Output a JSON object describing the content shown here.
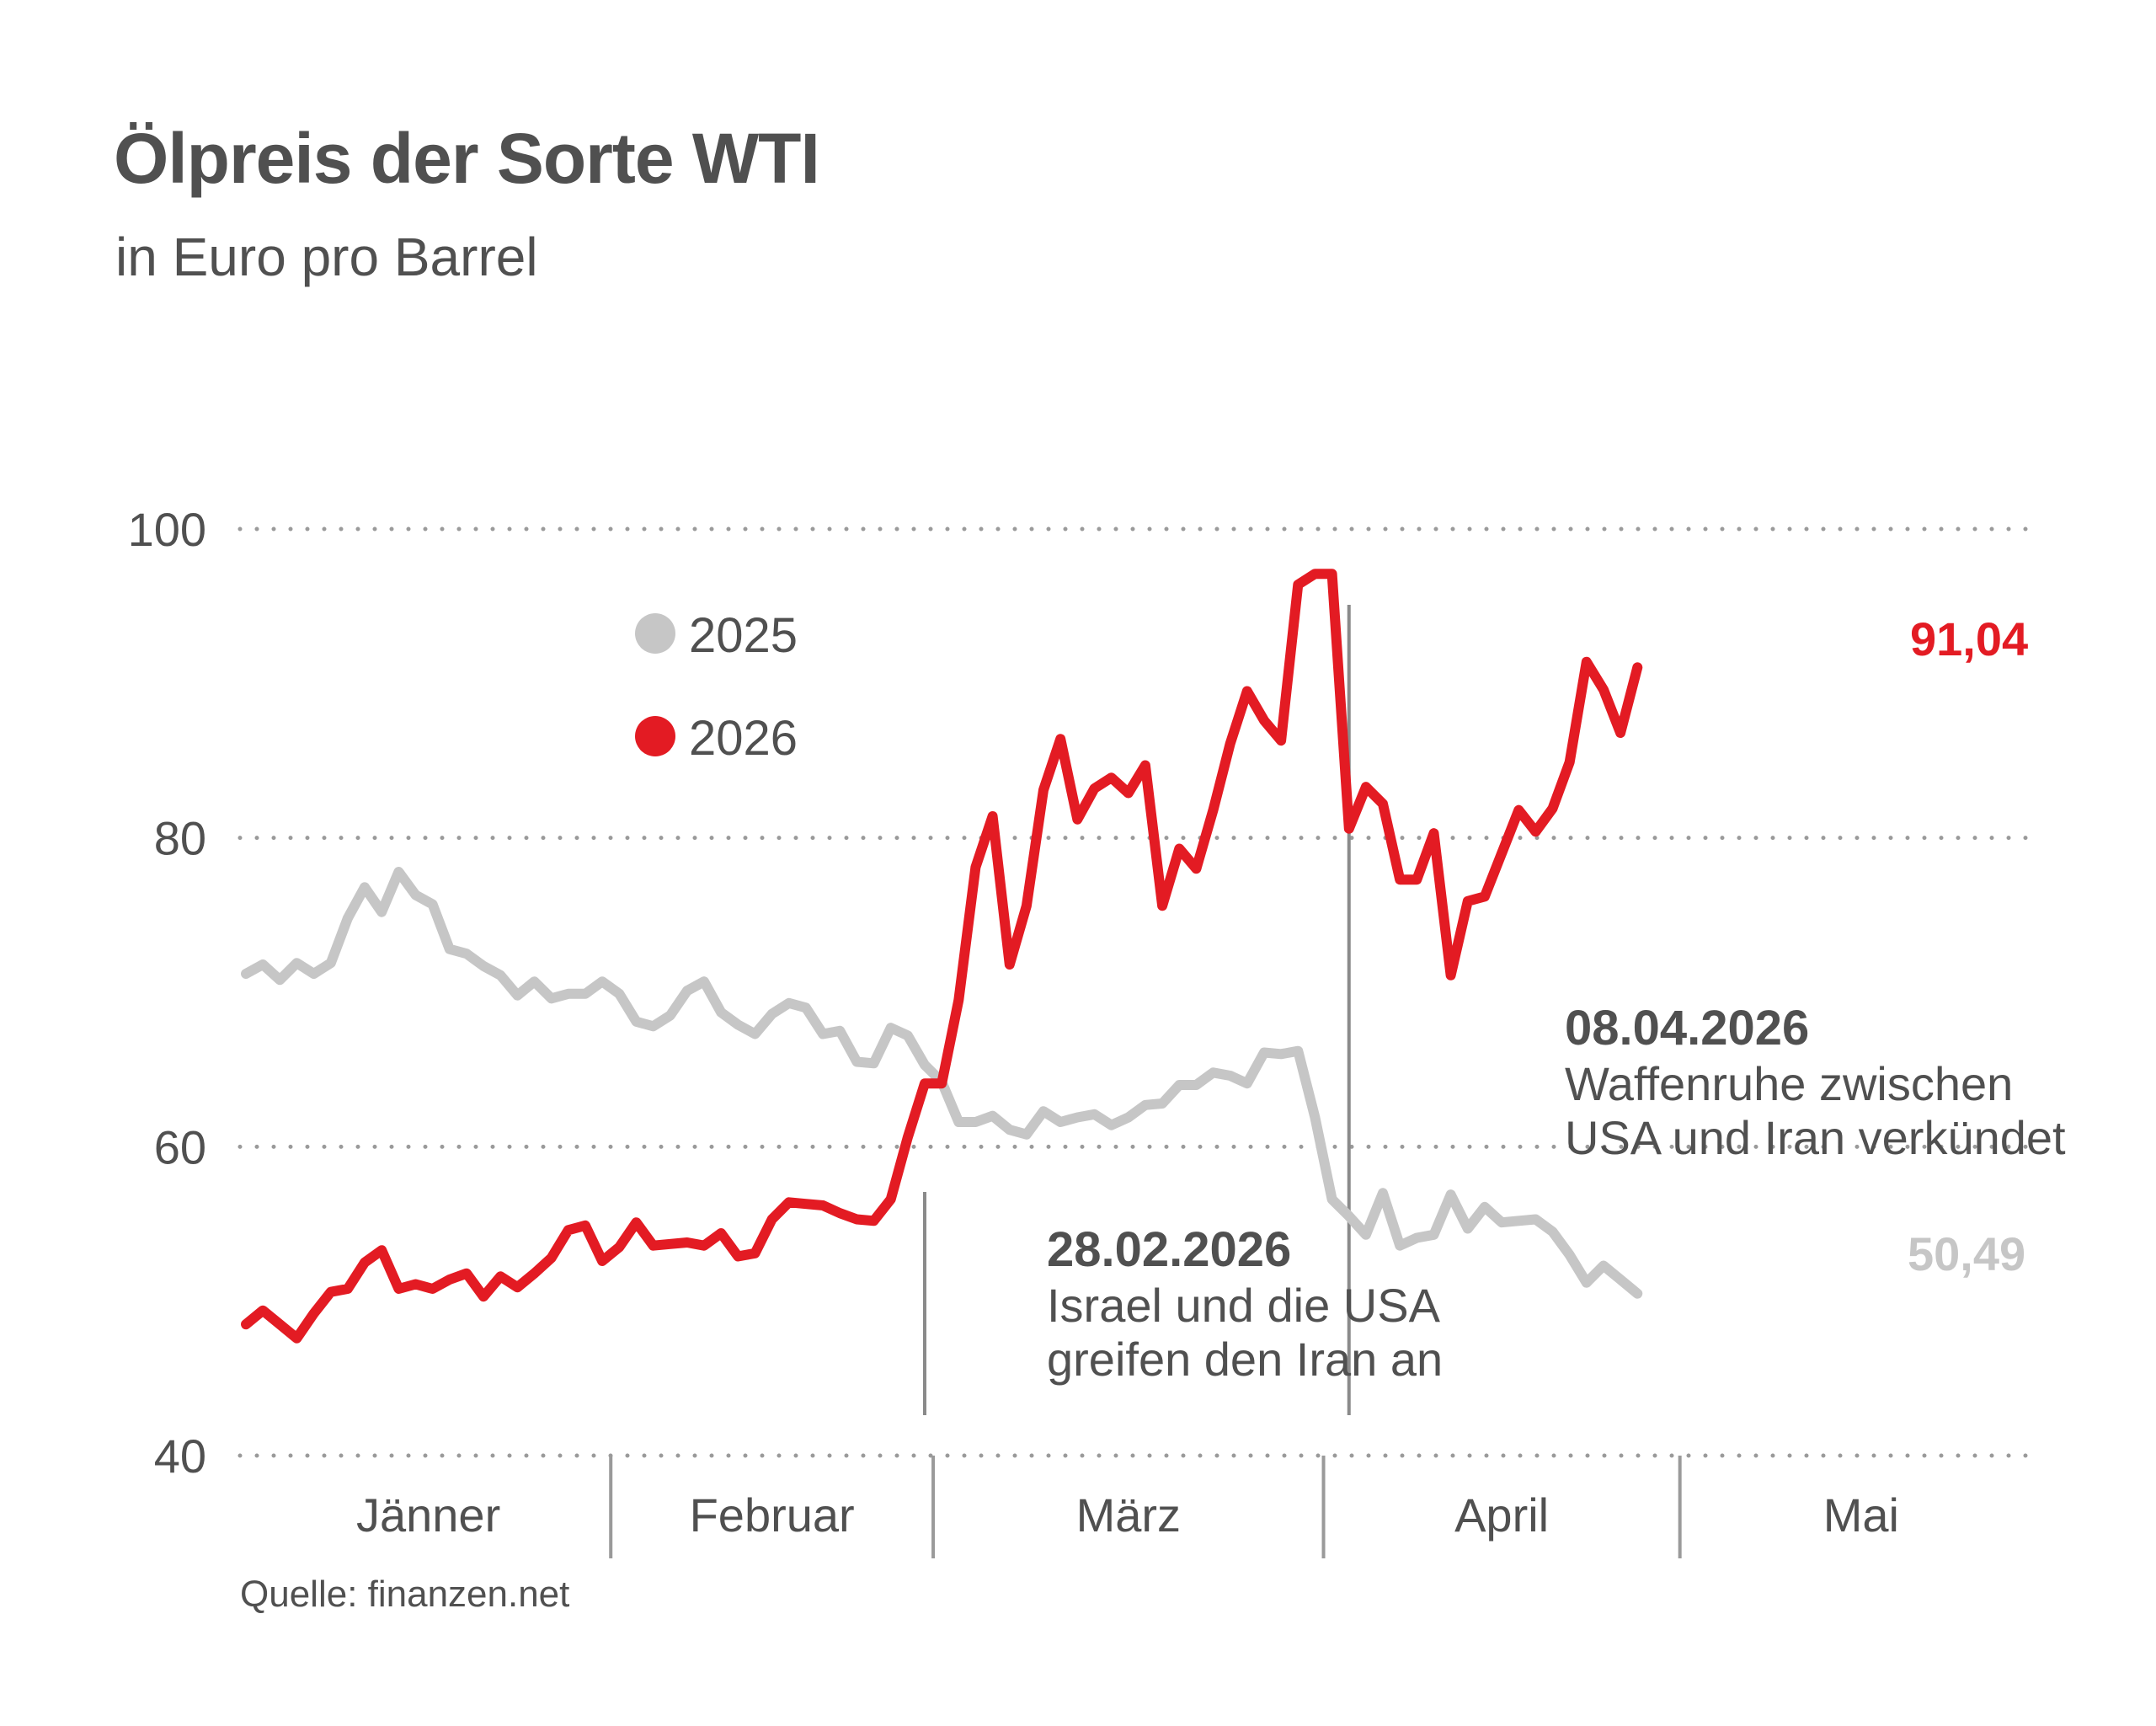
{
  "header": {
    "title": "Ölpreis der Sorte WTI",
    "subtitle": "in Euro pro Barrel"
  },
  "source": "Quelle: finanzen.net",
  "colors": {
    "y2025": "#c6c6c6",
    "y2026": "#e31b23",
    "text": "#505050",
    "grid": "#9a9a9a"
  },
  "chart_data": {
    "type": "line",
    "title": "Ölpreis der Sorte WTI",
    "subtitle": "in Euro pro Barrel",
    "ylim": [
      40,
      100
    ],
    "yticks": [
      "40",
      "60",
      "80",
      "100"
    ],
    "grid": "horizontal dotted",
    "legend_placement": "top-left",
    "months": [
      "Jänner",
      "Februar",
      "März",
      "April",
      "Mai"
    ],
    "month_boundaries": [
      22,
      41,
      64,
      85
    ],
    "x_count": 91,
    "series": [
      {
        "name": "2025",
        "color": "#c6c6c6",
        "end_label": "50,49",
        "values": [
          71.2,
          71.8,
          70.8,
          71.9,
          71.2,
          71.9,
          74.8,
          76.8,
          75.2,
          77.8,
          76.3,
          75.7,
          72.8,
          72.5,
          71.7,
          71.1,
          69.8,
          70.7,
          69.6,
          69.9,
          69.9,
          70.7,
          69.9,
          68.1,
          67.8,
          68.5,
          70.1,
          70.7,
          68.7,
          67.9,
          67.3,
          68.6,
          69.3,
          69,
          67.3,
          67.5,
          65.5,
          65.4,
          67.7,
          67.2,
          65.3,
          64.2,
          61.6,
          61.6,
          62,
          61.1,
          60.8,
          62.3,
          61.6,
          61.9,
          62.1,
          61.4,
          61.9,
          62.7,
          62.8,
          64,
          64,
          64.8,
          64.6,
          64.1,
          66.1,
          66,
          66.2,
          61.9,
          56.6,
          55.5,
          54.3,
          57,
          53.6,
          54.1,
          54.3,
          56.9,
          54.7,
          56.1,
          55.1,
          55.2,
          55.3,
          54.5,
          53,
          51.2,
          52.3,
          51.4,
          50.49
        ]
      },
      {
        "name": "2026",
        "color": "#e31b23",
        "end_label": "91,04",
        "values": [
          48.5,
          49.4,
          48.5,
          47.6,
          49.2,
          50.6,
          50.8,
          52.5,
          53.3,
          50.8,
          51.1,
          50.8,
          51.4,
          51.8,
          50.3,
          51.6,
          50.9,
          51.8,
          52.8,
          54.6,
          54.9,
          52.6,
          53.5,
          55.1,
          53.6,
          53.7,
          53.8,
          53.6,
          54.4,
          52.9,
          53.1,
          55.3,
          56.4,
          56.3,
          56.2,
          55.7,
          55.3,
          55.2,
          56.6,
          60.6,
          64.1,
          64.1,
          69.5,
          78.1,
          81.4,
          71.8,
          75.6,
          83.1,
          86.4,
          81.2,
          83.2,
          83.9,
          82.9,
          84.7,
          75.6,
          79.3,
          78,
          81.8,
          86.1,
          89.5,
          87.6,
          86.3,
          96.4,
          97.1,
          97.1,
          80.6,
          83.3,
          82.2,
          77.3,
          77.3,
          80.3,
          71.1,
          75.9,
          76.2,
          79,
          81.8,
          80.4,
          81.9,
          84.9,
          91.4,
          89.6,
          86.8,
          91.04
        ]
      }
    ],
    "annotations": [
      {
        "date": "28.02.2026",
        "text_lines": [
          "Israel und die USA",
          "greifen den Iran an"
        ],
        "x_index": 40
      },
      {
        "date": "08.04.2026",
        "text_lines": [
          "Waffenruhe zwischen",
          "USA und Iran verkündet"
        ],
        "x_index": 65
      }
    ]
  }
}
